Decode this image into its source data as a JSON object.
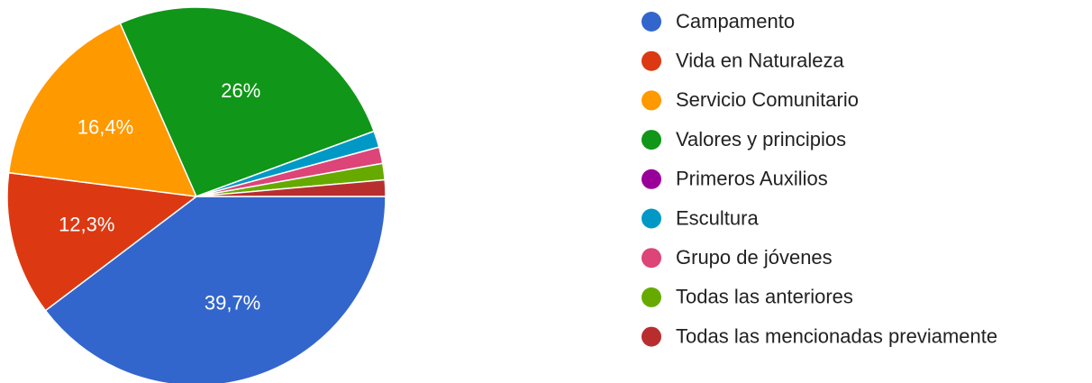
{
  "chart_data": {
    "type": "pie",
    "categories": [
      "Campamento",
      "Vida en Naturaleza",
      "Servicio Comunitario",
      "Valores y principios",
      "Primeros Auxilios",
      "Escultura",
      "Grupo de jóvenes",
      "Todas las anteriores",
      "Todas las mencionadas previamente"
    ],
    "values": [
      39.7,
      12.3,
      16.4,
      26,
      0,
      1.4,
      1.4,
      1.4,
      1.4
    ],
    "value_labels": [
      "39,7%",
      "12,3%",
      "16,4%",
      "26%",
      null,
      null,
      null,
      null,
      null
    ],
    "colors": [
      "#3366cc",
      "#dc3912",
      "#ff9900",
      "#109618",
      "#990099",
      "#0099c6",
      "#dd4477",
      "#66aa00",
      "#b82e2e"
    ],
    "legend": "right"
  }
}
